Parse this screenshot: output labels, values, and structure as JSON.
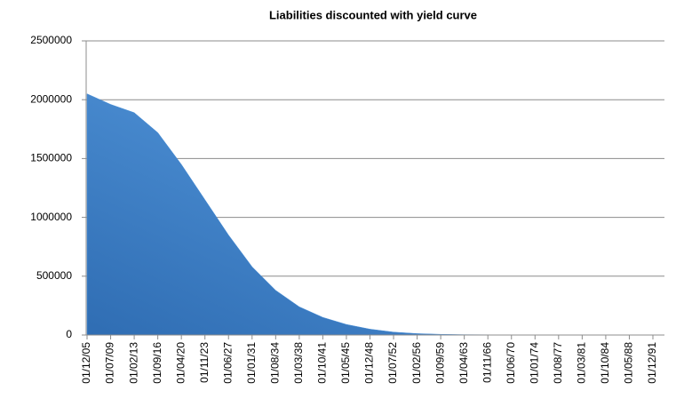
{
  "chart_data": {
    "type": "area",
    "title": "Liabilities discounted with yield curve",
    "categories": [
      "01/12/05",
      "01/07/09",
      "01/02/13",
      "01/09/16",
      "01/04/20",
      "01/11/23",
      "01/06/27",
      "01/01/31",
      "01/08/34",
      "01/03/38",
      "01/10/41",
      "01/05/45",
      "01/12/48",
      "01/07/52",
      "01/02/56",
      "01/09/59",
      "01/04/63",
      "01/11/66",
      "01/06/70",
      "01/01/74",
      "01/08/77",
      "01/03/81",
      "01/10/84",
      "01/05/88",
      "01/12/91"
    ],
    "values": [
      2050000,
      1960000,
      1890000,
      1720000,
      1450000,
      1150000,
      850000,
      580000,
      380000,
      240000,
      150000,
      90000,
      50000,
      25000,
      12000,
      6000,
      3000,
      2000,
      1000,
      1000,
      500,
      500,
      300,
      200,
      null
    ],
    "color": "#4a90d9",
    "ylim": [
      0,
      2500000
    ],
    "yticks": [
      0,
      500000,
      1000000,
      1500000,
      2000000,
      2500000
    ],
    "grid": true
  }
}
